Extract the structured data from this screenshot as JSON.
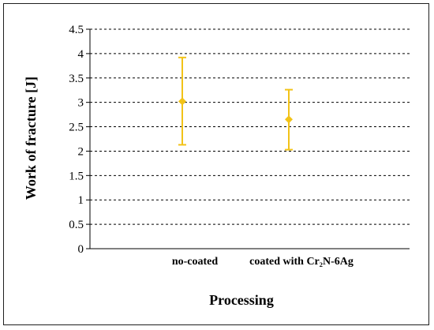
{
  "chart_data": {
    "type": "scatter",
    "title": "",
    "xlabel": "Processing",
    "ylabel": "Work of fracture [J]",
    "ylim": [
      0,
      4.5
    ],
    "ytick_step": 0.5,
    "ytick_labels": [
      "0",
      "0.5",
      "1",
      "1.5",
      "2",
      "2.5",
      "3",
      "3.5",
      "4",
      "4.5"
    ],
    "grid": true,
    "legend": "none",
    "categories": [
      "no-coated",
      "coated with Cr₂N-6Ag"
    ],
    "series": [
      {
        "values": [
          3.02,
          2.65
        ],
        "error_low": [
          2.13,
          2.03
        ],
        "error_high": [
          3.92,
          3.26
        ],
        "color": "#f2c318"
      }
    ]
  }
}
